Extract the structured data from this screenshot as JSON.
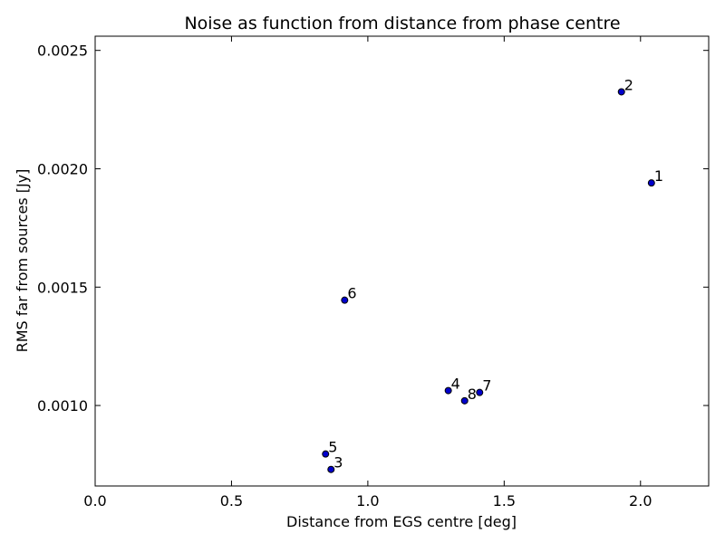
{
  "chart_data": {
    "type": "scatter",
    "title": "Noise as function from distance from phase centre",
    "xlabel": "Distance from EGS centre [deg]",
    "ylabel": "RMS far from sources [Jy]",
    "xlim": [
      0.0,
      2.25
    ],
    "ylim": [
      0.00066,
      0.00256
    ],
    "xticks": [
      0.0,
      0.5,
      1.0,
      1.5,
      2.0
    ],
    "xtick_labels": [
      "0.0",
      "0.5",
      "1.0",
      "1.5",
      "2.0"
    ],
    "yticks": [
      0.001,
      0.0015,
      0.002,
      0.0025
    ],
    "ytick_labels": [
      "0.0010",
      "0.0015",
      "0.0020",
      "0.0025"
    ],
    "grid": false,
    "marker_color": "#0000cc",
    "points": [
      {
        "label": "1",
        "x": 2.04,
        "y": 0.00194
      },
      {
        "label": "2",
        "x": 1.93,
        "y": 0.002325
      },
      {
        "label": "3",
        "x": 0.865,
        "y": 0.00073
      },
      {
        "label": "4",
        "x": 1.295,
        "y": 0.001063
      },
      {
        "label": "5",
        "x": 0.845,
        "y": 0.000795
      },
      {
        "label": "6",
        "x": 0.915,
        "y": 0.001445
      },
      {
        "label": "7",
        "x": 1.41,
        "y": 0.001055
      },
      {
        "label": "8",
        "x": 1.355,
        "y": 0.00102
      }
    ]
  }
}
